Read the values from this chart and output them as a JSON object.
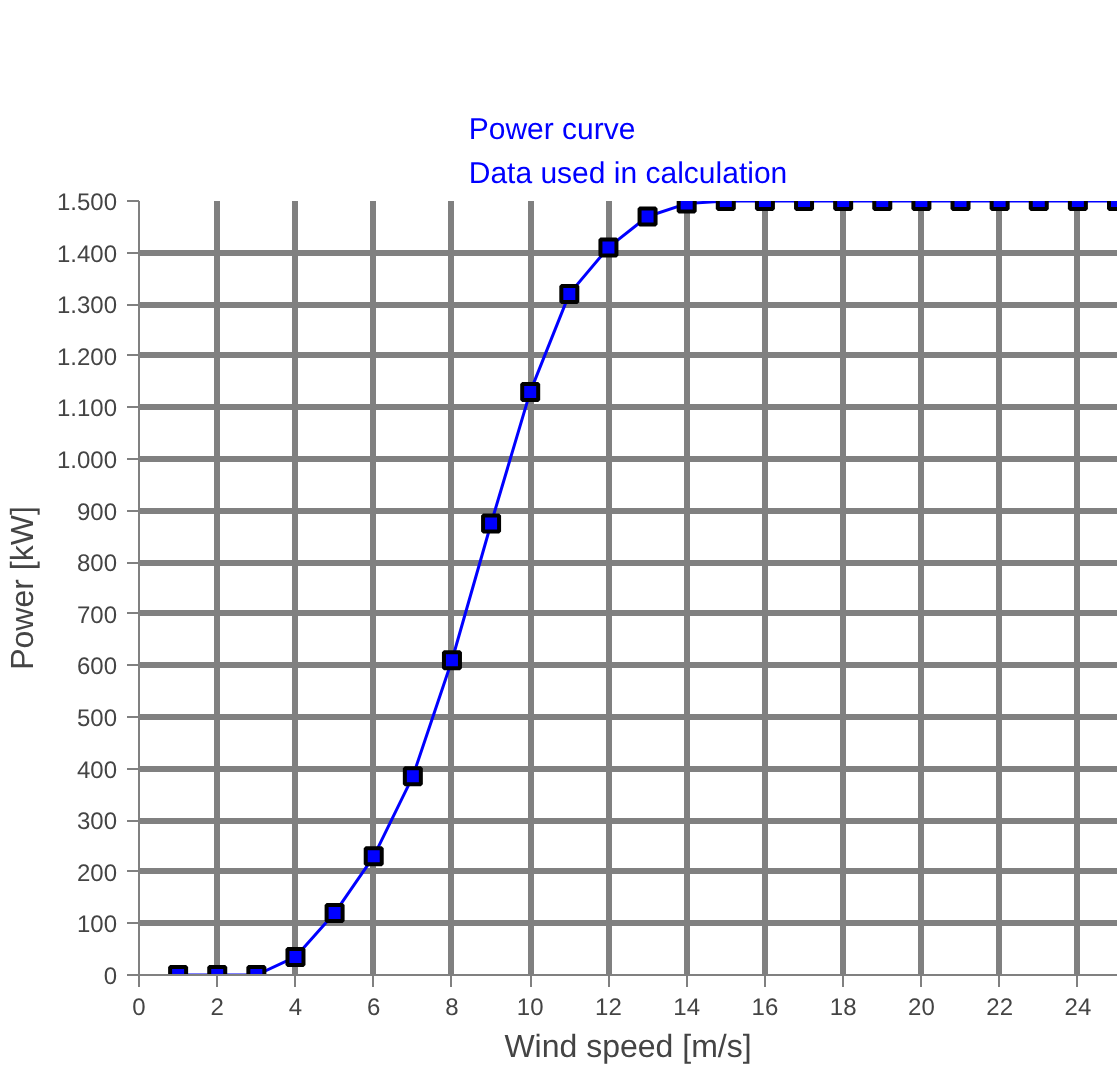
{
  "chart_data": {
    "type": "line",
    "title": "Power curve\nData used in calculation",
    "xlabel": "Wind speed [m/s]",
    "ylabel": "Power [kW]",
    "x": [
      1,
      2,
      3,
      4,
      5,
      6,
      7,
      8,
      9,
      10,
      11,
      12,
      13,
      14,
      15,
      16,
      17,
      18,
      19,
      20,
      21,
      22,
      23,
      24,
      25
    ],
    "series": [
      {
        "color": "#0000ff",
        "values": [
          0,
          0,
          0,
          35,
          120,
          230,
          385,
          610,
          875,
          1130,
          1320,
          1410,
          1470,
          1495,
          1500,
          1500,
          1500,
          1500,
          1500,
          1500,
          1500,
          1500,
          1500,
          1500,
          1500
        ]
      }
    ],
    "xlim": [
      0,
      25
    ],
    "ylim": [
      0,
      1500
    ],
    "xticks": [
      0,
      2,
      4,
      6,
      8,
      10,
      12,
      14,
      16,
      18,
      20,
      22,
      24
    ],
    "yticks": [
      0,
      100,
      200,
      300,
      400,
      500,
      600,
      700,
      800,
      900,
      {
        "value": 1000,
        "label": "1.000"
      },
      {
        "value": 1100,
        "label": "1.100"
      },
      {
        "value": 1200,
        "label": "1.200"
      },
      {
        "value": 1300,
        "label": "1.300"
      },
      {
        "value": 1400,
        "label": "1.400"
      },
      {
        "value": 1500,
        "label": "1.500"
      }
    ],
    "grid": true,
    "marker": "square",
    "line_style": "solid"
  }
}
